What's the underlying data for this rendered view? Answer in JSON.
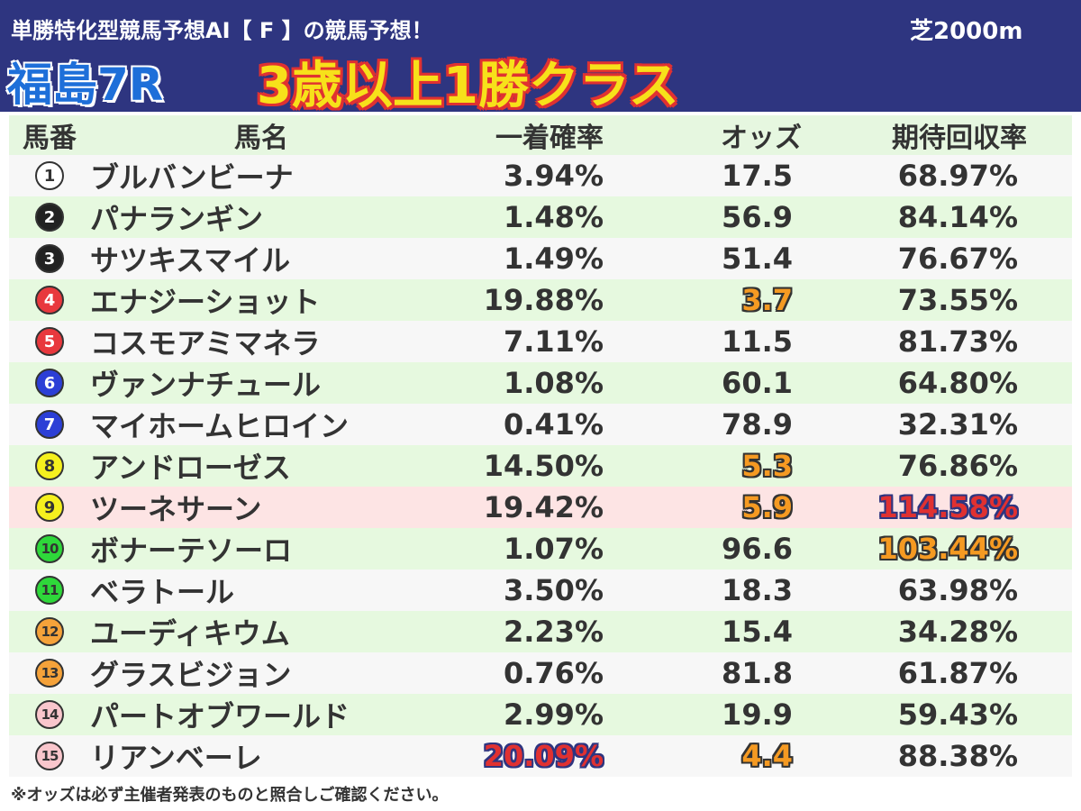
{
  "header": {
    "subtitle": "単勝特化型競馬予想AI【 F 】の競馬予想！",
    "course": "芝2000m",
    "race_no": "福島7R",
    "race_class": "3歳以上1勝クラス",
    "colors": {
      "banner": "#2e3580",
      "race_no": "#1e6fd9",
      "race_class": "#f7e11a",
      "race_class_outline": "#e03131"
    }
  },
  "columns": {
    "num": "馬番",
    "name": "馬名",
    "prob": "一着確率",
    "odds": "オッズ",
    "ret": "期待回収率"
  },
  "rows": [
    {
      "num": "1",
      "name": "ブルバンビーナ",
      "prob": "3.94%",
      "odds": "17.5",
      "ret": "68.97%"
    },
    {
      "num": "2",
      "name": "パナランギン",
      "prob": "1.48%",
      "odds": "56.9",
      "ret": "84.14%"
    },
    {
      "num": "3",
      "name": "サツキスマイル",
      "prob": "1.49%",
      "odds": "51.4",
      "ret": "76.67%"
    },
    {
      "num": "4",
      "name": "エナジーショット",
      "prob": "19.88%",
      "odds": "3.7",
      "ret": "73.55%"
    },
    {
      "num": "5",
      "name": "コスモアミマネラ",
      "prob": "7.11%",
      "odds": "11.5",
      "ret": "81.73%"
    },
    {
      "num": "6",
      "name": "ヴァンナチュール",
      "prob": "1.08%",
      "odds": "60.1",
      "ret": "64.80%"
    },
    {
      "num": "7",
      "name": "マイホームヒロイン",
      "prob": "0.41%",
      "odds": "78.9",
      "ret": "32.31%"
    },
    {
      "num": "8",
      "name": "アンドローゼス",
      "prob": "14.50%",
      "odds": "5.3",
      "ret": "76.86%"
    },
    {
      "num": "9",
      "name": "ツーネサーン",
      "prob": "19.42%",
      "odds": "5.9",
      "ret": "114.58%"
    },
    {
      "num": "10",
      "name": "ボナーテソーロ",
      "prob": "1.07%",
      "odds": "96.6",
      "ret": "103.44%"
    },
    {
      "num": "11",
      "name": "ベラトール",
      "prob": "3.50%",
      "odds": "18.3",
      "ret": "63.98%"
    },
    {
      "num": "12",
      "name": "ユーディキウム",
      "prob": "2.23%",
      "odds": "15.4",
      "ret": "34.28%"
    },
    {
      "num": "13",
      "name": "グラスビジョン",
      "prob": "0.76%",
      "odds": "81.8",
      "ret": "61.87%"
    },
    {
      "num": "14",
      "name": "パートオブワールド",
      "prob": "2.99%",
      "odds": "19.9",
      "ret": "59.43%"
    },
    {
      "num": "15",
      "name": "リアンベーレ",
      "prob": "20.09%",
      "odds": "4.4",
      "ret": "88.38%"
    }
  ],
  "note": "※オッズは必ず主催者発表のものと照合しご確認ください。"
}
